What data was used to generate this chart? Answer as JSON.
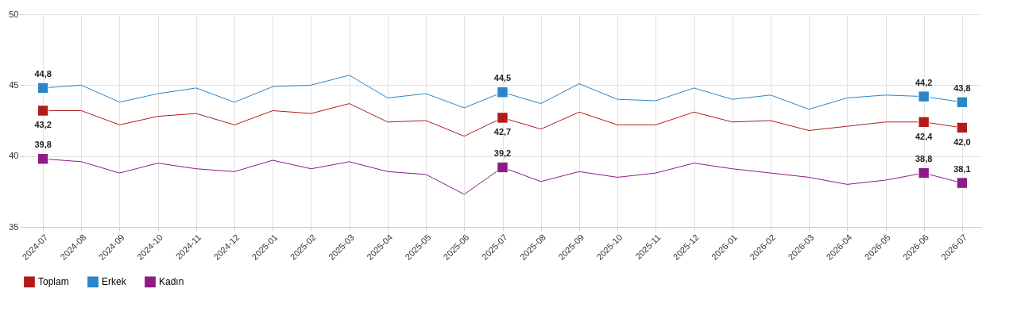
{
  "chart_data": {
    "type": "line",
    "categories": [
      "2024-07",
      "2024-08",
      "2024-09",
      "2024-10",
      "2024-11",
      "2024-12",
      "2025-01",
      "2025-02",
      "2025-03",
      "2025-04",
      "2025-05",
      "2025-06",
      "2025-07",
      "2025-08",
      "2025-09",
      "2025-10",
      "2025-11",
      "2025-12",
      "2026-01",
      "2026-02",
      "2026-03",
      "2026-04",
      "2026-05",
      "2026-06",
      "2026-07"
    ],
    "series": [
      {
        "name": "Toplam",
        "color": "#b31b1b",
        "values": [
          43.2,
          43.2,
          42.2,
          42.8,
          43.0,
          42.2,
          43.2,
          43.0,
          43.7,
          42.4,
          42.5,
          41.4,
          42.7,
          41.9,
          43.1,
          42.2,
          42.2,
          43.1,
          42.4,
          42.5,
          41.8,
          42.1,
          42.4,
          42.4,
          42.0
        ],
        "value_labels": [
          "43,2",
          null,
          null,
          null,
          null,
          null,
          null,
          null,
          null,
          null,
          null,
          null,
          "42,7",
          null,
          null,
          null,
          null,
          null,
          null,
          null,
          null,
          null,
          null,
          "42,4",
          "42,0"
        ]
      },
      {
        "name": "Erkek",
        "color": "#2a86c8",
        "values": [
          44.8,
          45.0,
          43.8,
          44.4,
          44.8,
          43.8,
          44.9,
          45.0,
          45.7,
          44.1,
          44.4,
          43.4,
          44.5,
          43.7,
          45.1,
          44.0,
          43.9,
          44.8,
          44.0,
          44.3,
          43.3,
          44.1,
          44.3,
          44.2,
          43.8
        ],
        "value_labels": [
          "44,8",
          null,
          null,
          null,
          null,
          null,
          null,
          null,
          null,
          null,
          null,
          null,
          "44,5",
          null,
          null,
          null,
          null,
          null,
          null,
          null,
          null,
          null,
          null,
          "44,2",
          "43,8"
        ]
      },
      {
        "name": "Kadın",
        "color": "#8e1a87",
        "values": [
          39.8,
          39.6,
          38.8,
          39.5,
          39.1,
          38.9,
          39.7,
          39.1,
          39.6,
          38.9,
          38.7,
          37.3,
          39.2,
          38.2,
          38.9,
          38.5,
          38.8,
          39.5,
          39.1,
          38.8,
          38.5,
          38.0,
          38.3,
          38.8,
          38.1
        ],
        "value_labels": [
          "39,8",
          null,
          null,
          null,
          null,
          null,
          null,
          null,
          null,
          null,
          null,
          null,
          "39,2",
          null,
          null,
          null,
          null,
          null,
          null,
          null,
          null,
          null,
          null,
          "38,8",
          "38,1"
        ]
      }
    ],
    "ylim": [
      35,
      50
    ],
    "yticks": [
      35,
      40,
      45,
      50
    ],
    "grid": true,
    "legend": "bottom",
    "line_style": "solid"
  }
}
